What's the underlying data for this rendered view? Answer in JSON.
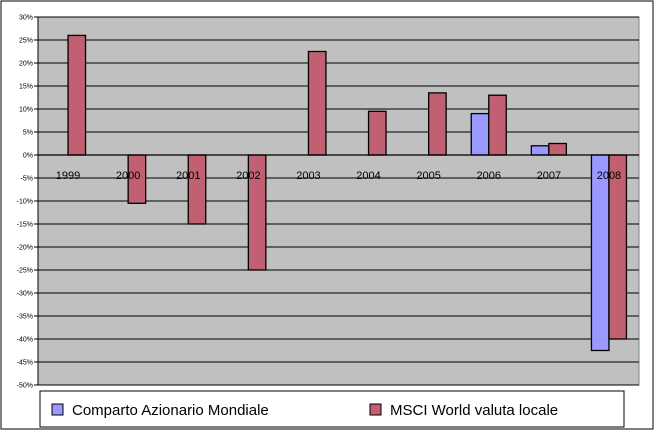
{
  "chart_data": {
    "type": "bar",
    "title": "",
    "xlabel": "",
    "ylabel": "",
    "categories": [
      "1999",
      "2000",
      "2001",
      "2002",
      "2003",
      "2004",
      "2005",
      "2006",
      "2007",
      "2008"
    ],
    "series": [
      {
        "name": "Comparto Azionario Mondiale",
        "color": "#9999ff",
        "values": [
          null,
          null,
          null,
          null,
          null,
          null,
          null,
          9,
          2,
          -42.5
        ]
      },
      {
        "name": "MSCI World valuta locale",
        "color": "#c06070",
        "values": [
          26,
          -10.5,
          -15,
          -25,
          22.5,
          9.5,
          13.5,
          13,
          2.5,
          -40
        ]
      }
    ],
    "ylim": [
      -50,
      30
    ],
    "ytick_step": 5,
    "ytick_labels": [
      "30%",
      "25%",
      "20%",
      "15%",
      "10%",
      "5%",
      "0%",
      "-5%",
      "-10%",
      "-15%",
      "-20%",
      "-25%",
      "-30%",
      "-35%",
      "-40%",
      "-45%",
      "-50%"
    ],
    "grid": true,
    "plot_background": "#c0c0c0",
    "legend_position": "bottom"
  }
}
